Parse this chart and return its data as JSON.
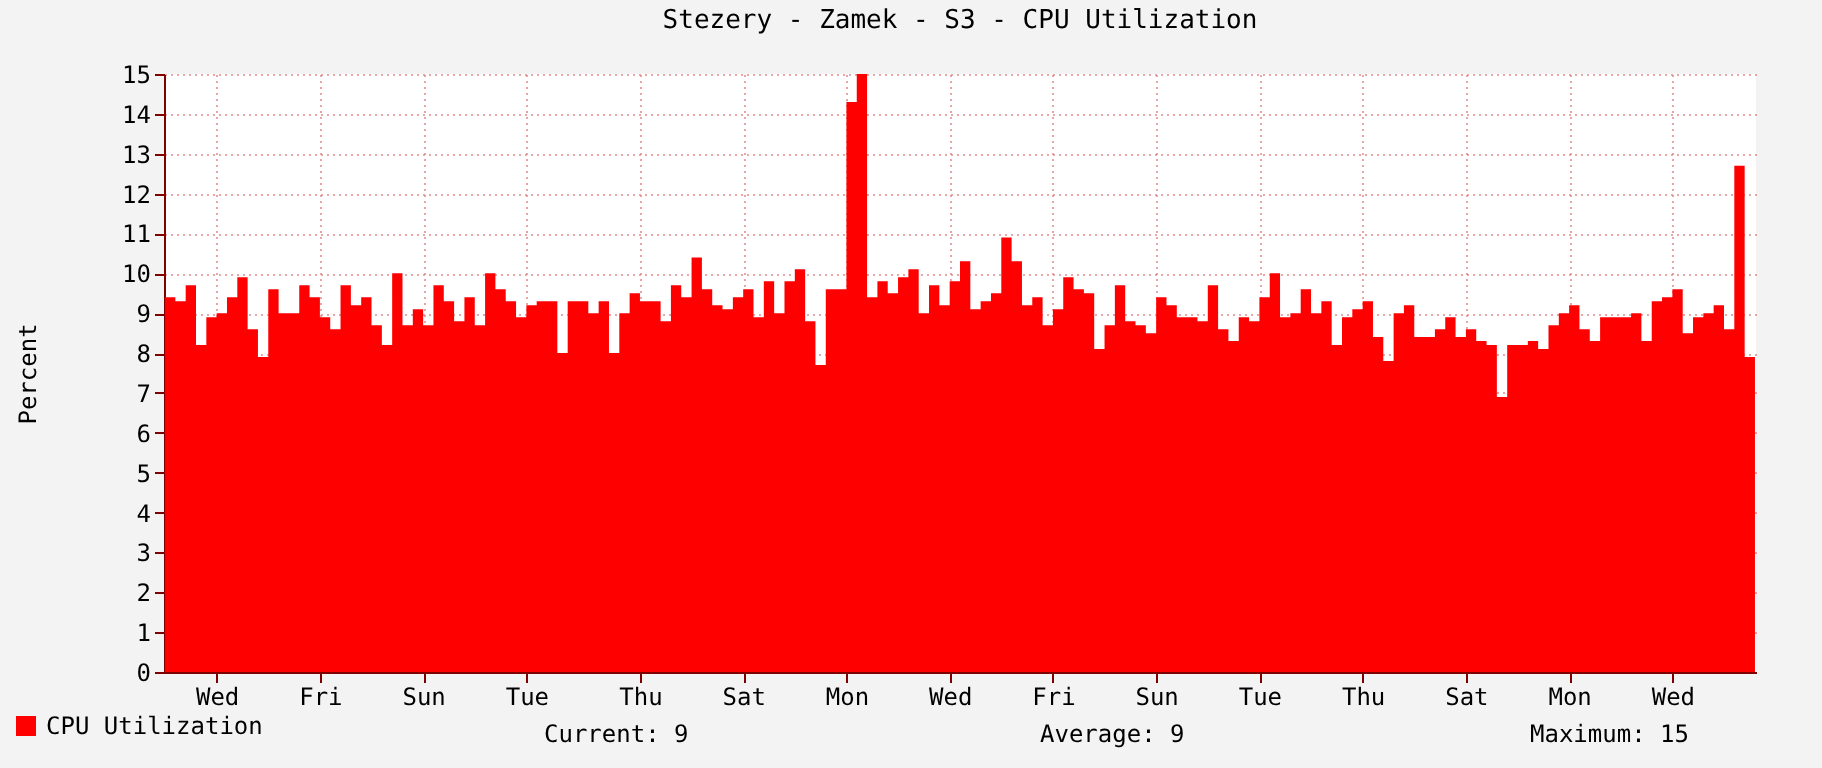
{
  "chart_data": {
    "type": "area",
    "title": "Stezery - Zamek - S3 - CPU Utilization",
    "ylabel": "Percent",
    "categories": [
      null,
      null,
      null,
      null,
      null,
      "Wed",
      null,
      null,
      null,
      null,
      null,
      null,
      null,
      null,
      null,
      "Fri",
      null,
      null,
      null,
      null,
      null,
      null,
      null,
      null,
      null,
      "Sun",
      null,
      null,
      null,
      null,
      null,
      null,
      null,
      null,
      null,
      "Tue",
      null,
      null,
      null,
      null,
      null,
      null,
      null,
      null,
      null,
      null,
      "Thu",
      null,
      null,
      null,
      null,
      null,
      null,
      null,
      null,
      null,
      "Sat",
      null,
      null,
      null,
      null,
      null,
      null,
      null,
      null,
      null,
      "Mon",
      null,
      null,
      null,
      null,
      null,
      null,
      null,
      null,
      null,
      "Wed",
      null,
      null,
      null,
      null,
      null,
      null,
      null,
      null,
      null,
      "Fri",
      null,
      null,
      null,
      null,
      null,
      null,
      null,
      null,
      null,
      "Sun",
      null,
      null,
      null,
      null,
      null,
      null,
      null,
      null,
      null,
      "Tue",
      null,
      null,
      null,
      null,
      null,
      null,
      null,
      null,
      null,
      "Thu",
      null,
      null,
      null,
      null,
      null,
      null,
      null,
      null,
      null,
      "Sat",
      null,
      null,
      null,
      null,
      null,
      null,
      null,
      null,
      null,
      "Mon",
      null,
      null,
      null,
      null,
      null,
      null,
      null,
      null,
      null,
      "Wed",
      null,
      null,
      null,
      null,
      null,
      null,
      null,
      null
    ],
    "series": [
      {
        "name": "CPU Utilization",
        "color": "#ff0000",
        "values": [
          9.4,
          9.3,
          9.7,
          8.2,
          8.9,
          9.0,
          9.4,
          9.9,
          8.6,
          7.9,
          9.6,
          9.0,
          9.0,
          9.7,
          9.4,
          8.9,
          8.6,
          9.7,
          9.2,
          9.4,
          8.7,
          8.2,
          10.0,
          8.7,
          9.1,
          8.7,
          9.7,
          9.3,
          8.8,
          9.4,
          8.7,
          10.0,
          9.6,
          9.3,
          8.9,
          9.2,
          9.3,
          9.3,
          8.0,
          9.3,
          9.3,
          9.0,
          9.3,
          8.0,
          9.0,
          9.5,
          9.3,
          9.3,
          8.8,
          9.7,
          9.4,
          10.4,
          9.6,
          9.2,
          9.1,
          9.4,
          9.6,
          8.9,
          9.8,
          9.0,
          9.8,
          10.1,
          8.8,
          7.7,
          9.6,
          9.6,
          14.3,
          15.0,
          9.4,
          9.8,
          9.5,
          9.9,
          10.1,
          9.0,
          9.7,
          9.2,
          9.8,
          10.3,
          9.1,
          9.3,
          9.5,
          10.9,
          10.3,
          9.2,
          9.4,
          8.7,
          9.1,
          9.9,
          9.6,
          9.5,
          8.1,
          8.7,
          9.7,
          8.8,
          8.7,
          8.5,
          9.4,
          9.2,
          8.9,
          8.9,
          8.8,
          9.7,
          8.6,
          8.3,
          8.9,
          8.8,
          9.4,
          10.0,
          8.9,
          9.0,
          9.6,
          9.0,
          9.3,
          8.2,
          8.9,
          9.1,
          9.3,
          8.4,
          7.8,
          9.0,
          9.2,
          8.4,
          8.4,
          8.6,
          8.9,
          8.4,
          8.6,
          8.3,
          8.2,
          6.9,
          8.2,
          8.2,
          8.3,
          8.1,
          8.7,
          9.0,
          9.2,
          8.6,
          8.3,
          8.9,
          8.9,
          8.9,
          9.0,
          8.3,
          9.3,
          9.4,
          9.6,
          8.5,
          8.9,
          9.0,
          9.2,
          8.6,
          12.7,
          7.9,
          9.1
        ]
      }
    ],
    "ylim": [
      0,
      15
    ],
    "yticks": [
      0,
      1,
      2,
      3,
      4,
      5,
      6,
      7,
      8,
      9,
      10,
      11,
      12,
      13,
      14,
      15
    ],
    "grid": true,
    "legend": "bottom left",
    "annotations": [
      "Current: 9",
      "Average: 9",
      "Maximum: 15"
    ]
  }
}
